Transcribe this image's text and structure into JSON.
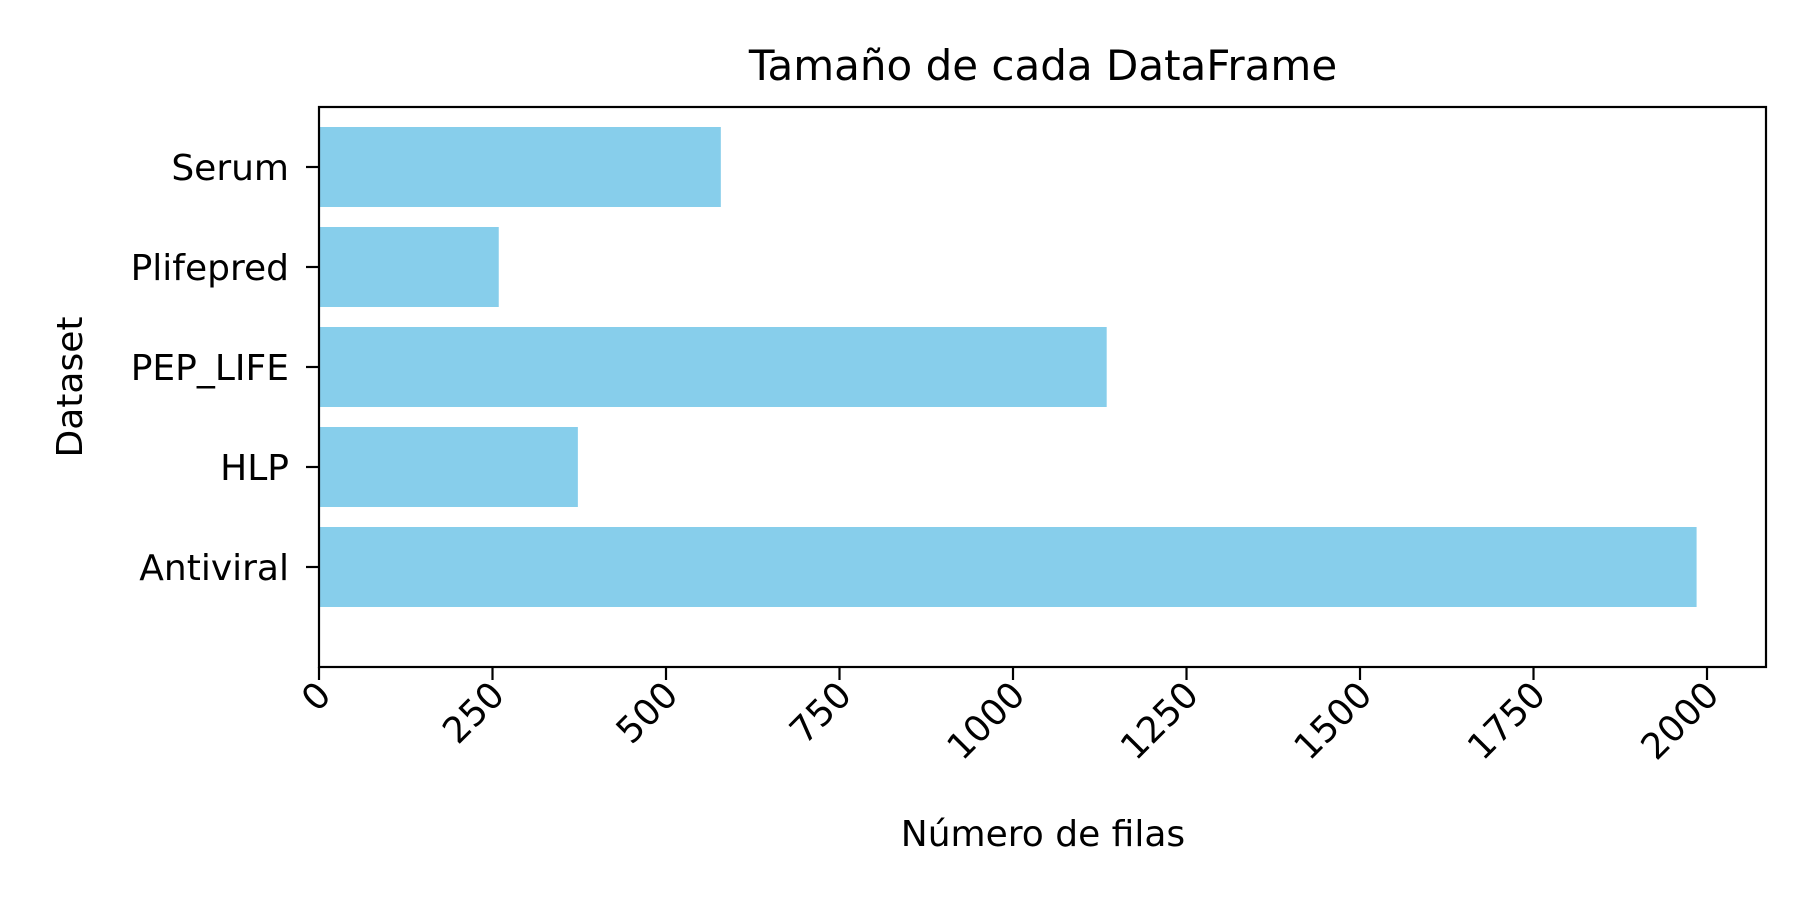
{
  "chart_data": {
    "type": "bar",
    "orientation": "horizontal",
    "title": "Tamaño de cada DataFrame",
    "xlabel": "Número de filas",
    "ylabel": "Dataset",
    "categories": [
      "Antiviral",
      "HLP",
      "PEP_LIFE",
      "Plifepred",
      "Serum"
    ],
    "values": [
      1985,
      373,
      1135,
      259,
      579
    ],
    "xlim": [
      0,
      2085
    ],
    "xticks": [
      0,
      250,
      500,
      750,
      1000,
      1250,
      1500,
      1750,
      2000
    ],
    "xtick_rotation": 45,
    "grid": false,
    "legend": "none",
    "bar_color": "#87ceeb"
  }
}
